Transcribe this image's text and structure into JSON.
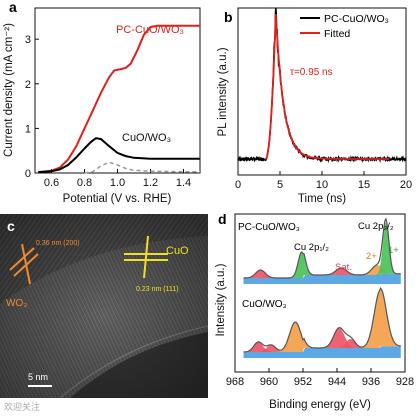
{
  "panels": {
    "a": {
      "label": "a"
    },
    "b": {
      "label": "b"
    },
    "c": {
      "label": "c"
    },
    "d": {
      "label": "d"
    }
  },
  "chart_data": [
    {
      "panel": "a",
      "type": "line",
      "xlabel": "Potential (V vs. RHE)",
      "ylabel": "Current density (mA cm⁻²)",
      "xlim": [
        0.5,
        1.5
      ],
      "ylim": [
        0,
        3.7
      ],
      "xticks": [
        "0.6",
        "0.8",
        "1.0",
        "1.2",
        "1.4"
      ],
      "yticks": [
        "0",
        "1",
        "2",
        "3"
      ],
      "colors": {
        "pc": "#e0201c",
        "cuo": "#000000",
        "dark": "#9a9a9a"
      },
      "series": [
        {
          "name": "PC-CuO/WO₃",
          "x": [
            0.52,
            0.6,
            0.65,
            0.7,
            0.75,
            0.8,
            0.85,
            0.9,
            0.95,
            0.98,
            1.02,
            1.05,
            1.08,
            1.12,
            1.16,
            1.2,
            1.24,
            1.28,
            1.35,
            1.45,
            1.5
          ],
          "y": [
            0.02,
            0.05,
            0.12,
            0.3,
            0.6,
            1.0,
            1.4,
            1.8,
            2.15,
            2.3,
            2.33,
            2.36,
            2.45,
            2.75,
            3.1,
            3.27,
            3.3,
            3.3,
            3.3,
            3.3,
            3.3
          ]
        },
        {
          "name": "CuO/WO₃",
          "x": [
            0.52,
            0.6,
            0.65,
            0.7,
            0.75,
            0.8,
            0.84,
            0.87,
            0.9,
            0.95,
            1.0,
            1.05,
            1.1,
            1.2,
            1.35,
            1.5
          ],
          "y": [
            0.02,
            0.04,
            0.08,
            0.18,
            0.35,
            0.55,
            0.7,
            0.78,
            0.76,
            0.6,
            0.45,
            0.38,
            0.34,
            0.32,
            0.32,
            0.32
          ]
        },
        {
          "name": "dark",
          "x": [
            0.8,
            0.85,
            0.9,
            0.95,
            1.0,
            1.05,
            1.1,
            1.2,
            1.35,
            1.5
          ],
          "y": [
            0.0,
            0.03,
            0.16,
            0.24,
            0.18,
            0.1,
            0.06,
            0.04,
            0.03,
            0.03
          ]
        }
      ],
      "annotations": [
        "PC-CuO/WO₃",
        "CuO/WO₃"
      ]
    },
    {
      "panel": "b",
      "type": "line",
      "xlabel": "Time (ns)",
      "ylabel": "PL intensity (a.u.)",
      "xlim": [
        0,
        20
      ],
      "xticks": [
        "0",
        "5",
        "10",
        "15",
        "20"
      ],
      "legend": [
        "PC-CuO/WO₃",
        "Fitted"
      ],
      "legend_position": "top-right",
      "annotation": "τ=0.95 ns",
      "colors": {
        "data": "#000000",
        "fit": "#e0201c"
      },
      "peak_time": 4.5,
      "tau_ns": 0.95
    },
    {
      "panel": "d",
      "type": "line",
      "xlabel": "Binding energy (eV)",
      "ylabel": "Intensity (a.u.)",
      "xlim": [
        968,
        928
      ],
      "xticks": [
        "968",
        "960",
        "952",
        "944",
        "936",
        "928"
      ],
      "samples": [
        "PC-CuO/WO₃",
        "CuO/WO₃"
      ],
      "labels": {
        "cu2p12": "Cu 2p₁/₂",
        "cu2p32": "Cu 2p₃/₂",
        "sat": "Sat.",
        "two_plus": "2+",
        "one_plus": "1+"
      },
      "colors": {
        "cu2plus": "#f4a04a",
        "cu1plus": "#4cc25a",
        "sat": "#ee5566",
        "background": "#4a9fe0",
        "envelope": "#555555"
      }
    }
  ],
  "tem": {
    "labels": {
      "d_wo3": "0.36 nm\n(200)",
      "wo3": "WO₃",
      "d_cuo": "0.23 nm\n(111)",
      "cuo": "CuO",
      "scale": "5 nm"
    }
  },
  "watermark": "欢迎关注"
}
